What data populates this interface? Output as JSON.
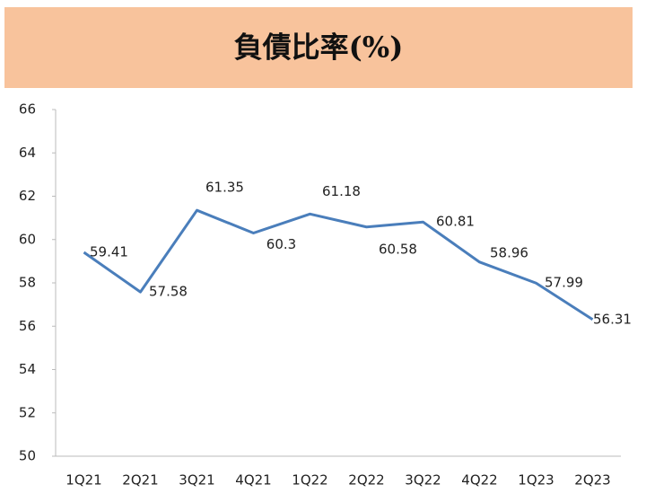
{
  "chart_data": {
    "type": "line",
    "title": "負債比率(%)",
    "categories": [
      "1Q21",
      "2Q21",
      "3Q21",
      "4Q21",
      "1Q22",
      "2Q22",
      "3Q22",
      "4Q22",
      "1Q23",
      "2Q23"
    ],
    "values": [
      59.41,
      57.58,
      61.35,
      60.3,
      61.18,
      60.58,
      60.81,
      58.96,
      57.99,
      56.31
    ],
    "color": "#4a7ebb",
    "ylim": [
      50,
      66
    ],
    "yticks": [
      50,
      52,
      54,
      56,
      58,
      60,
      62,
      64,
      66
    ],
    "grid": false
  }
}
